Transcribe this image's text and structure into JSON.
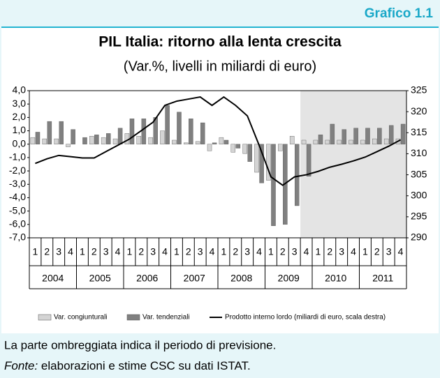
{
  "header": "Grafico 1.1",
  "chart_data": {
    "type": "bar-line",
    "title": "PIL Italia: ritorno alla lenta crescita",
    "subtitle": "(Var.%, livelli in miliardi di euro)",
    "categories": [
      "1",
      "2",
      "3",
      "4",
      "1",
      "2",
      "3",
      "4",
      "1",
      "2",
      "3",
      "4",
      "1",
      "2",
      "3",
      "4",
      "1",
      "2",
      "3",
      "4",
      "1",
      "2",
      "3",
      "4",
      "1",
      "2",
      "3",
      "4",
      "1",
      "2",
      "3",
      "4"
    ],
    "years": [
      "2004",
      "2005",
      "2006",
      "2007",
      "2008",
      "2009",
      "2010",
      "2011"
    ],
    "forecast_from": 23,
    "series": [
      {
        "name": "Var. congiunturali",
        "color": "#d4d4d4",
        "values": [
          0.5,
          0.4,
          0.4,
          -0.2,
          0.0,
          0.6,
          0.5,
          0.4,
          0.8,
          0.6,
          0.5,
          1.0,
          0.3,
          0.1,
          0.2,
          -0.5,
          0.5,
          -0.6,
          -0.7,
          -2.1,
          -2.7,
          -0.5,
          0.6,
          0.3,
          0.3,
          0.3,
          0.3,
          0.3,
          0.3,
          0.4,
          0.4,
          0.4
        ]
      },
      {
        "name": "Var. tendenziali",
        "color": "#808080",
        "values": [
          0.9,
          1.7,
          1.7,
          1.1,
          0.5,
          0.7,
          0.8,
          1.2,
          1.9,
          1.9,
          2.0,
          2.9,
          2.4,
          1.9,
          1.6,
          0.1,
          0.3,
          -0.3,
          -1.3,
          -2.9,
          -6.1,
          -6.0,
          -4.6,
          -2.4,
          0.7,
          1.5,
          1.1,
          1.2,
          1.2,
          1.2,
          1.4,
          1.5
        ]
      },
      {
        "name": "Prodotto interno lordo (miliardi di euro, scala destra)",
        "color": "#000000",
        "axis": "y2",
        "values": [
          307.7,
          308.8,
          309.6,
          309.3,
          309.0,
          309.0,
          310.5,
          312.0,
          313.5,
          315.5,
          317.5,
          321.5,
          322.5,
          323.0,
          323.5,
          321.5,
          323.5,
          321.5,
          319.0,
          312.0,
          304.5,
          302.5,
          304.5,
          305.0,
          305.8,
          306.8,
          307.5,
          308.3,
          309.2,
          310.5,
          311.8,
          313.3
        ]
      }
    ],
    "ylim": [
      -7,
      4
    ],
    "yticks": [
      {
        "value": 4,
        "label": "4,0"
      },
      {
        "value": 3,
        "label": "3,0"
      },
      {
        "value": 2,
        "label": "2,0"
      },
      {
        "value": 1,
        "label": "1,0"
      },
      {
        "value": 0,
        "label": "0,0"
      },
      {
        "value": -1,
        "label": "-1,0"
      },
      {
        "value": -2,
        "label": "-2,0"
      },
      {
        "value": -3,
        "label": "-3,0"
      },
      {
        "value": -4,
        "label": "-4,0"
      },
      {
        "value": -5,
        "label": "-5,0"
      },
      {
        "value": -6,
        "label": "-6,0"
      },
      {
        "value": -7,
        "label": "-7,0"
      }
    ],
    "y2lim": [
      290,
      325
    ],
    "y2ticks": [
      290,
      295,
      300,
      305,
      310,
      315,
      320,
      325
    ]
  },
  "notes": {
    "shading": "La parte ombreggiata indica il periodo di previsione.",
    "source_label": "Fonte:",
    "source": " elaborazioni e stime CSC su dati ISTAT."
  }
}
